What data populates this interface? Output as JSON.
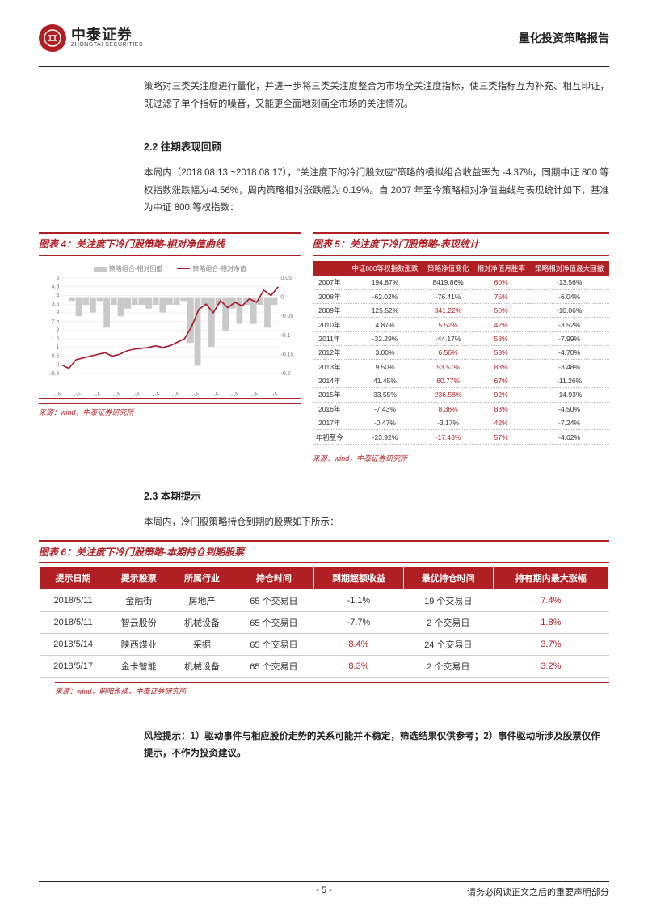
{
  "header": {
    "logo_cn": "中泰证券",
    "logo_en": "ZHONGTAI SECURITIES",
    "logo_glyph": "⊕",
    "report_title": "量化投资策略报告"
  },
  "intro_para": "策略对三类关注度进行量化，并进一步将三类关注度整合为市场全关注度指标，使三类指标互为补充、相互印证，既过滤了单个指标的噪音，又能更全面地刻画全市场的关注情况。",
  "sec22_title": "2.2 往期表现回顾",
  "sec22_para": "本周内（2018.08.13 ~2018.08.17），\"关注度下的冷门股效应\"策略的模拟组合收益率为 -4.37%，同期中证 800 等权指数涨跌幅为-4.56%，周内策略相对涨跌幅为 0.19%。自 2007 年至今策略相对净值曲线与表现统计如下，基准为中证 800 等权指数：",
  "fig4": {
    "caption": "图表 4：关注度下冷门股策略-相对净值曲线",
    "source": "来源：wind，中泰证券研究所",
    "legend1": "策略组合-相对回撤",
    "legend2": "策略组合-相对净值",
    "y_left": {
      "min": -0.5,
      "max": 5,
      "ticks": [
        "-0.5",
        "0",
        "0.5",
        "1",
        "1.5",
        "2",
        "2.5",
        "3",
        "3.5",
        "4",
        "4.5",
        "5"
      ]
    },
    "y_right": {
      "min": -0.2,
      "max": 0.05,
      "ticks": [
        "-0.2",
        "-0.15",
        "-0.1",
        "-0.05",
        "0",
        "0.05"
      ]
    },
    "x_labels": [
      "2007/1/4",
      "2008/1/4",
      "2009/1/4",
      "2010/1/4",
      "2011/1/4",
      "2012/1/4",
      "2013/1/4",
      "2014/1/4",
      "2015/1/4",
      "2016/1/4",
      "2017/1/4",
      "2018/1/4"
    ],
    "line_color": "#a8172a",
    "bar_color": "#c9c9c9",
    "grid_color": "#e6e6e6",
    "nav_points": [
      0,
      -0.2,
      0.3,
      0.4,
      0.5,
      0.6,
      0.7,
      0.5,
      0.6,
      0.8,
      0.9,
      0.95,
      1.0,
      1.1,
      1.0,
      1.1,
      1.3,
      1.5,
      2.2,
      3.2,
      3.5,
      3.0,
      3.7,
      3.3,
      3.6,
      3.4,
      3.8,
      3.6,
      4.3,
      4.0,
      4.5
    ],
    "draw_points": [
      0,
      -0.01,
      -0.05,
      -0.02,
      -0.04,
      -0.01,
      -0.08,
      -0.02,
      -0.05,
      -0.03,
      -0.02,
      -0.02,
      -0.03,
      -0.02,
      -0.04,
      -0.02,
      -0.02,
      -0.01,
      -0.12,
      -0.18,
      -0.02,
      -0.13,
      -0.02,
      -0.09,
      -0.03,
      -0.07,
      -0.02,
      -0.07,
      -0.02,
      -0.08,
      -0.02
    ]
  },
  "fig5": {
    "caption": "图表 5：关注度下冷门股策略-表现统计",
    "source": "来源：wind，中泰证券研究所",
    "columns": [
      "",
      "中证800等权指数涨跌",
      "策略净值变化",
      "相对净值月胜率",
      "策略相对净值最大回撤"
    ],
    "rows": [
      {
        "y": "2007年",
        "c1": "194.87%",
        "c2": "8419.86%",
        "c2_red": false,
        "c3": "60%",
        "c4": "-13.56%"
      },
      {
        "y": "2008年",
        "c1": "-62.02%",
        "c2": "-76.41%",
        "c2_red": false,
        "c3": "75%",
        "c4": "-6.04%"
      },
      {
        "y": "2009年",
        "c1": "125.52%",
        "c2": "341.22%",
        "c2_red": true,
        "c3": "50%",
        "c4": "-10.06%"
      },
      {
        "y": "2010年",
        "c1": "4.87%",
        "c2": "5.52%",
        "c2_red": true,
        "c3": "42%",
        "c4": "-3.52%"
      },
      {
        "y": "2011年",
        "c1": "-32.29%",
        "c2": "-44.17%",
        "c2_red": false,
        "c3": "58%",
        "c4": "-7.99%"
      },
      {
        "y": "2012年",
        "c1": "3.00%",
        "c2": "6.56%",
        "c2_red": true,
        "c3": "58%",
        "c4": "-4.70%"
      },
      {
        "y": "2013年",
        "c1": "9.50%",
        "c2": "53.57%",
        "c2_red": true,
        "c3": "83%",
        "c4": "-3.48%"
      },
      {
        "y": "2014年",
        "c1": "41.45%",
        "c2": "60.77%",
        "c2_red": true,
        "c3": "67%",
        "c4": "-11.26%"
      },
      {
        "y": "2015年",
        "c1": "33.55%",
        "c2": "236.58%",
        "c2_red": true,
        "c3": "92%",
        "c4": "-14.93%"
      },
      {
        "y": "2016年",
        "c1": "-7.43%",
        "c2": "8.36%",
        "c2_red": true,
        "c3": "83%",
        "c4": "-4.50%"
      },
      {
        "y": "2017年",
        "c1": "-0.47%",
        "c2": "-3.17%",
        "c2_red": false,
        "c3": "42%",
        "c4": "-7.24%"
      },
      {
        "y": "年初至今",
        "c1": "-23.92%",
        "c2": "-17.43%",
        "c2_red": true,
        "c3": "57%",
        "c4": "-4.62%"
      }
    ]
  },
  "sec23_title": "2.3 本期提示",
  "sec23_para": "本周内，冷门股策略持仓到期的股票如下所示：",
  "fig6": {
    "caption": "图表 6：关注度下冷门股策略-本期持仓到期股票",
    "source": "来源：wind，朝阳永续，中泰证券研究所",
    "columns": [
      "提示日期",
      "提示股票",
      "所属行业",
      "持仓时间",
      "到期超额收益",
      "最优持仓时间",
      "持有期内最大涨幅"
    ],
    "rows": [
      {
        "d": "2018/5/11",
        "s": "金融街",
        "i": "房地产",
        "t": "65 个交易日",
        "r": "-1.1%",
        "r_red": false,
        "o": "19 个交易日",
        "m": "7.4%"
      },
      {
        "d": "2018/5/11",
        "s": "智云股份",
        "i": "机械设备",
        "t": "65 个交易日",
        "r": "-7.7%",
        "r_red": false,
        "o": "2 个交易日",
        "m": "1.8%"
      },
      {
        "d": "2018/5/14",
        "s": "陕西煤业",
        "i": "采掘",
        "t": "65 个交易日",
        "r": "8.4%",
        "r_red": true,
        "o": "24 个交易日",
        "m": "3.7%"
      },
      {
        "d": "2018/5/17",
        "s": "金卡智能",
        "i": "机械设备",
        "t": "65 个交易日",
        "r": "8.3%",
        "r_red": true,
        "o": "2 个交易日",
        "m": "3.2%"
      }
    ]
  },
  "risk_text": "风险提示：1）驱动事件与相应股价走势的关系可能并不稳定，筛选结果仅供参考；2）事件驱动所涉及股票仅作提示，不作为投资建议。",
  "footer": {
    "page": "- 5 -",
    "disclaimer": "请务必阅读正文之后的重要声明部分"
  }
}
